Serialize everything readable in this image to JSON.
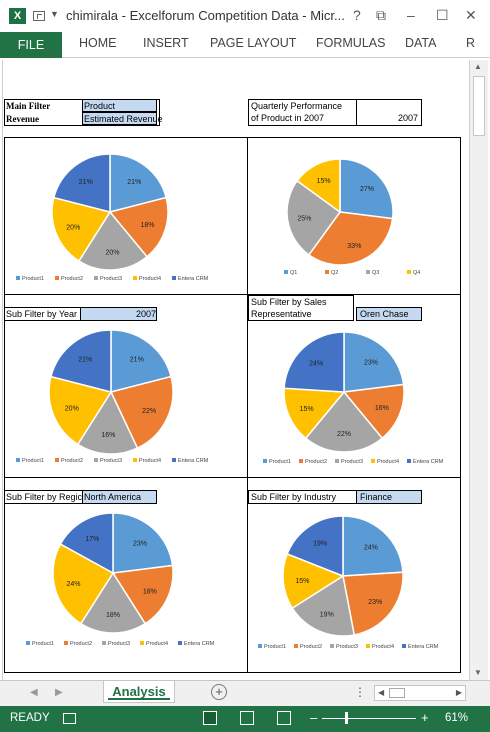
{
  "window": {
    "app_icon": "excel-icon",
    "title": "chimirala - Excelforum Competition Data - Micr...",
    "controls": [
      "?",
      "⧉",
      "–",
      "☐",
      "✕"
    ]
  },
  "ribbon": {
    "tabs": [
      "FILE",
      "HOME",
      "INSERT",
      "PAGE LAYOUT",
      "FORMULAS",
      "DATA",
      "R"
    ]
  },
  "filters": {
    "main_filter_label": "Main Filter",
    "main_filter_value": "Product",
    "revenue_label": "Revenue",
    "revenue_value": "Estimated Revenue",
    "quarterly_label_1": "Quarterly Performance",
    "quarterly_label_2": "of Product in 2007",
    "quarterly_year": "2007",
    "sub_year_label": "Sub Filter by Year",
    "sub_year_value": "2007",
    "sub_rep_label_1": "Sub Filter by Sales",
    "sub_rep_label_2": "Representative",
    "sub_rep_value": "Oren Chase",
    "sub_region_label": "Sub Filter by Regic",
    "sub_region_value": "North America",
    "sub_industry_label": "Sub Filter by Industry",
    "sub_industry_value": "Finance"
  },
  "chart_data": [
    {
      "type": "pie",
      "categories": [
        "Product1",
        "Product2",
        "Product3",
        "Product4",
        "Entera CRM"
      ],
      "values": [
        21,
        18,
        20,
        20,
        21
      ],
      "labels": [
        "21%",
        "18%",
        "20%",
        "20%",
        "21%"
      ],
      "legend": "bottom",
      "colors": [
        "#5b9bd5",
        "#ed7d31",
        "#a5a5a5",
        "#ffc000",
        "#4472c4"
      ]
    },
    {
      "type": "pie",
      "categories": [
        "Q1",
        "Q2",
        "Q3",
        "Q4"
      ],
      "values": [
        27,
        33,
        25,
        15
      ],
      "labels": [
        "27%",
        "33%",
        "25%",
        "15%"
      ],
      "legend": "bottom",
      "colors": [
        "#5b9bd5",
        "#ed7d31",
        "#a5a5a5",
        "#ffc000"
      ]
    },
    {
      "type": "pie",
      "categories": [
        "Product1",
        "Product2",
        "Product3",
        "Product4",
        "Entera CRM"
      ],
      "values": [
        21,
        22,
        16,
        20,
        21
      ],
      "labels": [
        "21%",
        "22%",
        "16%",
        "20%",
        "21%"
      ],
      "legend": "bottom",
      "colors": [
        "#5b9bd5",
        "#ed7d31",
        "#a5a5a5",
        "#ffc000",
        "#4472c4"
      ]
    },
    {
      "type": "pie",
      "categories": [
        "Product1",
        "Product2",
        "Product3",
        "Product4",
        "Entera CRM"
      ],
      "values": [
        23,
        16,
        22,
        15,
        24
      ],
      "labels": [
        "23%",
        "16%",
        "22%",
        "15%",
        "24%"
      ],
      "legend": "bottom",
      "colors": [
        "#5b9bd5",
        "#ed7d31",
        "#a5a5a5",
        "#ffc000",
        "#4472c4"
      ]
    },
    {
      "type": "pie",
      "categories": [
        "Product1",
        "Product2",
        "Product3",
        "Product4",
        "Entera CRM"
      ],
      "values": [
        23,
        18,
        18,
        24,
        17
      ],
      "labels": [
        "23%",
        "18%",
        "18%",
        "24%",
        "17%"
      ],
      "legend": "bottom",
      "colors": [
        "#5b9bd5",
        "#ed7d31",
        "#a5a5a5",
        "#ffc000",
        "#4472c4"
      ]
    },
    {
      "type": "pie",
      "categories": [
        "Product1",
        "Product2",
        "Product3",
        "Product4",
        "Entera CRM"
      ],
      "values": [
        24,
        23,
        19,
        15,
        19
      ],
      "labels": [
        "24%",
        "23%",
        "19%",
        "15%",
        "19%"
      ],
      "legend": "bottom",
      "colors": [
        "#5b9bd5",
        "#ed7d31",
        "#a5a5a5",
        "#ffc000",
        "#4472c4"
      ]
    }
  ],
  "sheet_tabs": {
    "active": "Analysis"
  },
  "status": {
    "ready": "READY",
    "zoom": "61%"
  }
}
